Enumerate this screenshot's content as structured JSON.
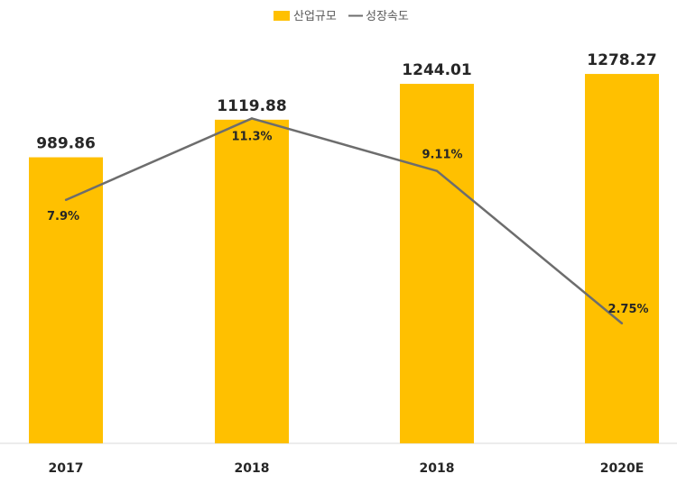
{
  "chart_data": {
    "type": "bar",
    "categories": [
      "2017",
      "2018",
      "2018",
      "2020E"
    ],
    "series": [
      {
        "name": "산업규모",
        "type": "bar",
        "values": [
          989.86,
          1119.88,
          1244.01,
          1278.27
        ],
        "labels": [
          "989.86",
          "1119.88",
          "1244.01",
          "1278.27"
        ],
        "color": "#FFC000"
      },
      {
        "name": "성장속도",
        "type": "line",
        "values": [
          7.9,
          11.3,
          9.11,
          2.75
        ],
        "labels": [
          "7.9%",
          "11.3%",
          "9.11%",
          "2.75%"
        ],
        "color": "#6D6D6D"
      }
    ],
    "legend_position": "top-center",
    "grid": false
  }
}
